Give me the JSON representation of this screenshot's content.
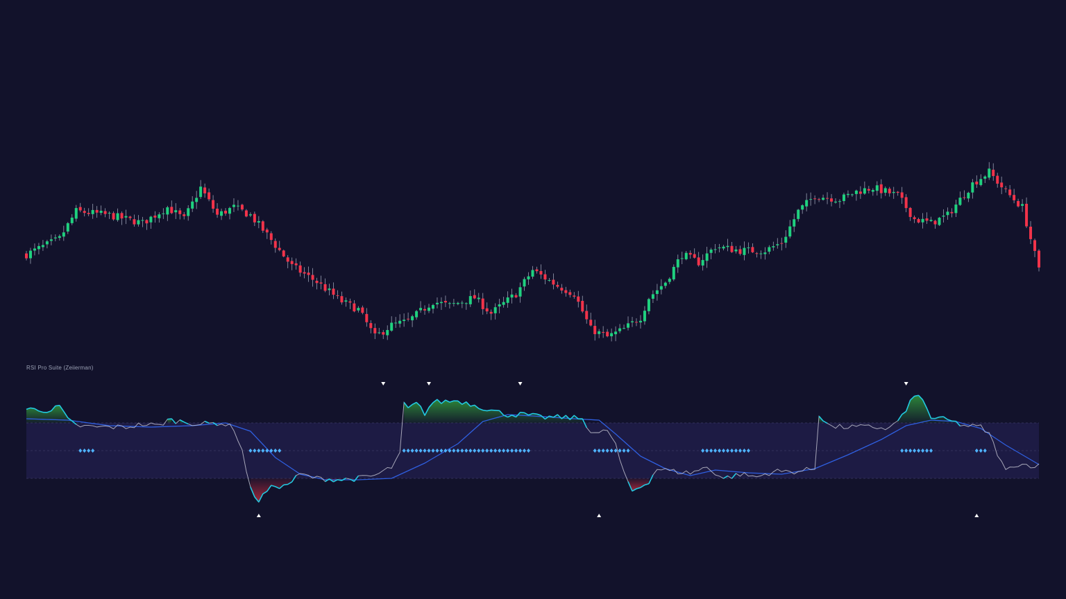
{
  "indicator": {
    "title": "RSI Pro Suite (Zeiierman)"
  },
  "colors": {
    "background": "#12122b",
    "bull_candle": "#1fd17f",
    "bear_candle": "#f2334a",
    "wick": "#9aa0b4",
    "rsi_line": "#c9c9d6",
    "rsi_hot": "#20c9e0",
    "signal_line": "#2f5fe0",
    "ob_fill": "#2e8b3a",
    "os_fill": "#a8283c",
    "band_fill": "#1d1b44",
    "dots": "#4fb3ff",
    "markers": "#ffffff"
  },
  "chart_data": [
    {
      "type": "candlestick",
      "title": "",
      "series": [
        {
          "count": 245,
          "close_path": [
            [
              0,
              52
            ],
            [
              8,
              56
            ],
            [
              12,
              63
            ],
            [
              20,
              62
            ],
            [
              28,
              60
            ],
            [
              34,
              64
            ],
            [
              38,
              61
            ],
            [
              42,
              69
            ],
            [
              46,
              62
            ],
            [
              50,
              64
            ],
            [
              54,
              62
            ],
            [
              58,
              57
            ],
            [
              64,
              49
            ],
            [
              70,
              45
            ],
            [
              76,
              40
            ],
            [
              80,
              38
            ],
            [
              84,
              31
            ],
            [
              88,
              34
            ],
            [
              92,
              35
            ],
            [
              98,
              40
            ],
            [
              102,
              39
            ],
            [
              108,
              41
            ],
            [
              112,
              37
            ],
            [
              118,
              42
            ],
            [
              122,
              48
            ],
            [
              128,
              44
            ],
            [
              132,
              42
            ],
            [
              136,
              33
            ],
            [
              140,
              31
            ],
            [
              144,
              33
            ],
            [
              148,
              36
            ],
            [
              150,
              41
            ],
            [
              154,
              45
            ],
            [
              158,
              52
            ],
            [
              162,
              50
            ],
            [
              166,
              54
            ],
            [
              172,
              53
            ],
            [
              178,
              53
            ],
            [
              182,
              55
            ],
            [
              186,
              63
            ],
            [
              190,
              67
            ],
            [
              196,
              66
            ],
            [
              200,
              68
            ],
            [
              204,
              69
            ],
            [
              210,
              67
            ],
            [
              214,
              61
            ],
            [
              218,
              60
            ],
            [
              222,
              62
            ],
            [
              228,
              70
            ],
            [
              232,
              73
            ],
            [
              236,
              68
            ],
            [
              240,
              64
            ],
            [
              244,
              48
            ]
          ],
          "volatility": 0.9
        }
      ]
    },
    {
      "type": "line",
      "title": "RSI Pro Suite (Zeiierman)",
      "levels": {
        "overbought": 70,
        "midline": 50,
        "oversold": 30
      },
      "ylim": [
        0,
        100
      ],
      "rsi_path": [
        [
          0,
          80
        ],
        [
          6,
          79
        ],
        [
          8,
          82
        ],
        [
          10,
          72
        ],
        [
          12,
          68
        ],
        [
          16,
          67
        ],
        [
          24,
          67
        ],
        [
          28,
          69
        ],
        [
          32,
          68
        ],
        [
          34,
          72
        ],
        [
          38,
          71
        ],
        [
          42,
          69
        ],
        [
          46,
          70
        ],
        [
          48,
          69
        ],
        [
          50,
          66
        ],
        [
          52,
          50
        ],
        [
          54,
          22
        ],
        [
          56,
          14
        ],
        [
          58,
          21
        ],
        [
          60,
          25
        ],
        [
          62,
          24
        ],
        [
          64,
          28
        ],
        [
          66,
          33
        ],
        [
          70,
          30
        ],
        [
          76,
          29
        ],
        [
          80,
          30
        ],
        [
          84,
          32
        ],
        [
          88,
          38
        ],
        [
          90,
          47
        ],
        [
          91,
          84
        ],
        [
          92,
          80
        ],
        [
          94,
          84
        ],
        [
          96,
          77
        ],
        [
          98,
          85
        ],
        [
          104,
          86
        ],
        [
          108,
          83
        ],
        [
          112,
          79
        ],
        [
          116,
          76
        ],
        [
          120,
          76
        ],
        [
          124,
          74
        ],
        [
          130,
          74
        ],
        [
          134,
          73
        ],
        [
          136,
          64
        ],
        [
          138,
          62
        ],
        [
          140,
          65
        ],
        [
          142,
          54
        ],
        [
          144,
          33
        ],
        [
          146,
          21
        ],
        [
          148,
          24
        ],
        [
          150,
          28
        ],
        [
          152,
          37
        ],
        [
          156,
          35
        ],
        [
          160,
          34
        ],
        [
          164,
          38
        ],
        [
          168,
          30
        ],
        [
          172,
          33
        ],
        [
          176,
          31
        ],
        [
          180,
          35
        ],
        [
          186,
          35
        ],
        [
          190,
          37
        ],
        [
          191,
          76
        ],
        [
          194,
          67
        ],
        [
          204,
          67
        ],
        [
          208,
          66
        ],
        [
          212,
          78
        ],
        [
          214,
          91
        ],
        [
          216,
          86
        ],
        [
          218,
          74
        ],
        [
          222,
          72
        ],
        [
          226,
          68
        ],
        [
          230,
          67
        ],
        [
          232,
          62
        ],
        [
          234,
          48
        ],
        [
          236,
          35
        ],
        [
          238,
          40
        ],
        [
          240,
          40
        ],
        [
          244,
          39
        ]
      ],
      "signal_path": [
        [
          0,
          73
        ],
        [
          10,
          72
        ],
        [
          20,
          68
        ],
        [
          30,
          67
        ],
        [
          40,
          68
        ],
        [
          48,
          70
        ],
        [
          54,
          64
        ],
        [
          60,
          45
        ],
        [
          66,
          33
        ],
        [
          72,
          29
        ],
        [
          80,
          29
        ],
        [
          88,
          30
        ],
        [
          96,
          41
        ],
        [
          104,
          55
        ],
        [
          110,
          71
        ],
        [
          116,
          76
        ],
        [
          122,
          75
        ],
        [
          132,
          73
        ],
        [
          138,
          72
        ],
        [
          142,
          62
        ],
        [
          148,
          46
        ],
        [
          154,
          37
        ],
        [
          160,
          32
        ],
        [
          166,
          36
        ],
        [
          174,
          34
        ],
        [
          182,
          33
        ],
        [
          190,
          37
        ],
        [
          198,
          47
        ],
        [
          206,
          58
        ],
        [
          212,
          68
        ],
        [
          218,
          72
        ],
        [
          224,
          71
        ],
        [
          230,
          66
        ],
        [
          236,
          54
        ],
        [
          240,
          47
        ],
        [
          244,
          40
        ]
      ],
      "dot_segments": [
        [
          13,
          16
        ],
        [
          54,
          61
        ],
        [
          91,
          121
        ],
        [
          137,
          145
        ],
        [
          163,
          174
        ],
        [
          211,
          218
        ],
        [
          229,
          231
        ]
      ],
      "markers": [
        {
          "index": 86,
          "direction": "down",
          "position": "top"
        },
        {
          "index": 97,
          "direction": "down",
          "position": "top"
        },
        {
          "index": 119,
          "direction": "down",
          "position": "top"
        },
        {
          "index": 56,
          "direction": "up",
          "position": "bottom"
        },
        {
          "index": 138,
          "direction": "up",
          "position": "bottom"
        },
        {
          "index": 212,
          "direction": "down",
          "position": "top"
        },
        {
          "index": 229,
          "direction": "up",
          "position": "bottom"
        }
      ]
    }
  ]
}
